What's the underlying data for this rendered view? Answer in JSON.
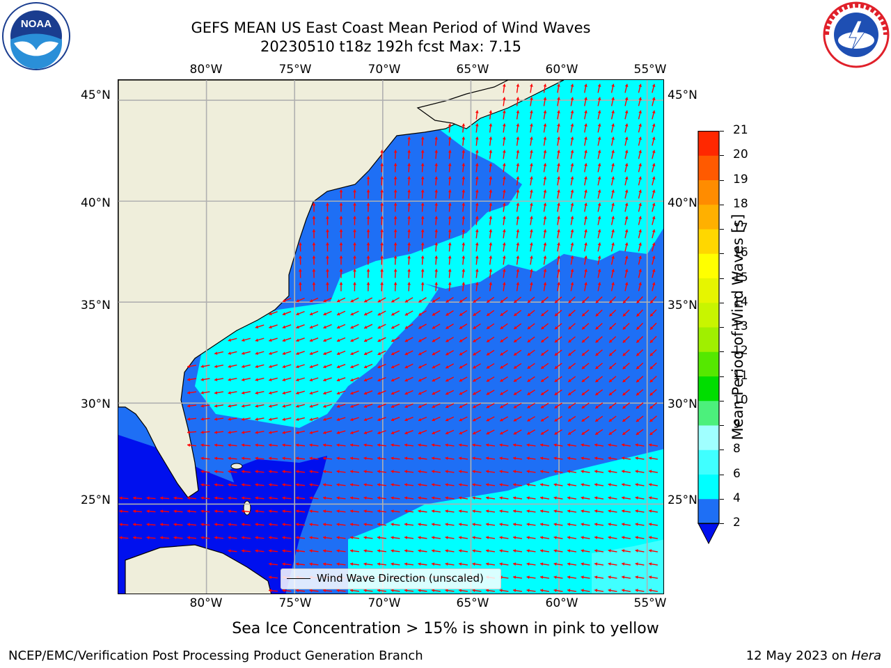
{
  "header": {
    "title_line1": "GEFS MEAN US East Coast Mean Period of Wind Waves",
    "title_line2": "20230510 t18z 192h fcst   Max: 7.15"
  },
  "logos": {
    "left": {
      "icon": "noaa-logo",
      "text": "NOAA",
      "ring_text": "NATIONAL OCEANIC AND ATMOSPHERIC ADMINISTRATION · U.S. DEPARTMENT OF COMMERCE"
    },
    "right": {
      "icon": "nws-logo",
      "ring_text": "NATIONAL WEATHER SERVICE"
    }
  },
  "map": {
    "projection": "lat-lon",
    "lon_range": [
      -85,
      -54
    ],
    "lat_range": [
      20.5,
      46
    ],
    "lon_ticks": [
      "80°W",
      "75°W",
      "70°W",
      "65°W",
      "60°W",
      "55°W"
    ],
    "lat_ticks": [
      "45°N",
      "40°N",
      "35°N",
      "30°N",
      "25°N"
    ],
    "land_color": "#efeedb",
    "grid": true,
    "arrow_color": "#ff0000",
    "legend_label": "Wind Wave Direction (unscaled)"
  },
  "colorbar": {
    "label": "Mean Period of Wind Waves [s]",
    "ticks": [
      "2",
      "4",
      "6",
      "8",
      "9",
      "10",
      "11",
      "12",
      "13",
      "14",
      "15",
      "16",
      "17",
      "18",
      "19",
      "20",
      "21"
    ],
    "colors": [
      "#1e6ff5",
      "#00ffff",
      "#40ffff",
      "#a0ffff",
      "#4cf07c",
      "#00dd00",
      "#55e800",
      "#a0ef00",
      "#c8f500",
      "#e6f500",
      "#ffff00",
      "#ffd700",
      "#ffb000",
      "#ff8c00",
      "#ff5a00",
      "#ff2800",
      "#ff0000"
    ],
    "under_color": "#0010ee"
  },
  "footer": {
    "ice_note": "Sea Ice Concentration > 15% is shown in pink to yellow",
    "left": "NCEP/EMC/Verification Post Processing Product Generation Branch",
    "date": "12 May 2023 on ",
    "machine": "Hera"
  }
}
